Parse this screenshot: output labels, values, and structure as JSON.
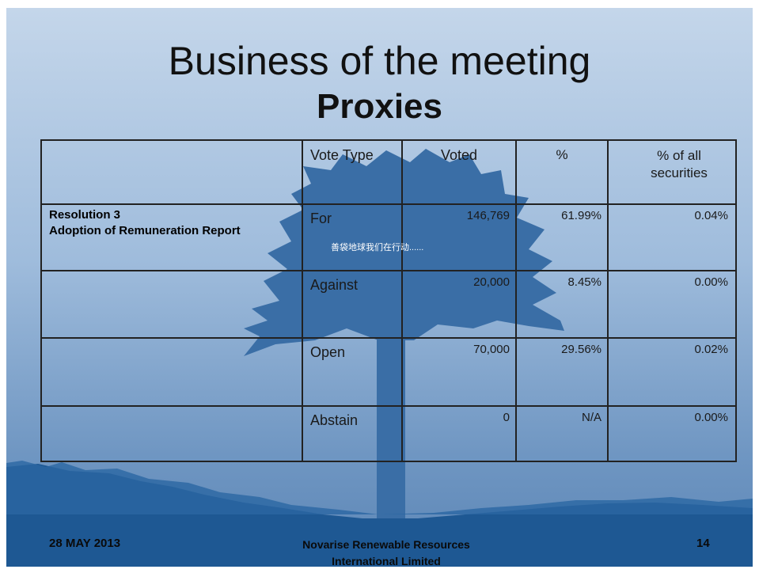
{
  "slide": {
    "title": "Business of the meeting",
    "subtitle": "Proxies",
    "table": {
      "header": [
        "Vote Type",
        "Voted",
        "%",
        "% of all securities"
      ],
      "resolution": [
        "Resolution 3",
        "Adoption of Remuneration Report"
      ],
      "rows": [
        [
          "For",
          "146,769",
          "61.99%",
          "0.04%"
        ],
        [
          "Against",
          "20,000",
          "8.45%",
          "0.00%"
        ],
        [
          "Open",
          "70,000",
          "29.56%",
          "0.02%"
        ],
        [
          "Abstain",
          "0",
          "N/A",
          "0.00%"
        ]
      ]
    },
    "watermark": "善袋地球我们在行动......",
    "footer": {
      "date": "28 MAY 2013",
      "company": [
        "Novarise Renewable Resources",
        "International Limited"
      ],
      "page": "14"
    }
  }
}
